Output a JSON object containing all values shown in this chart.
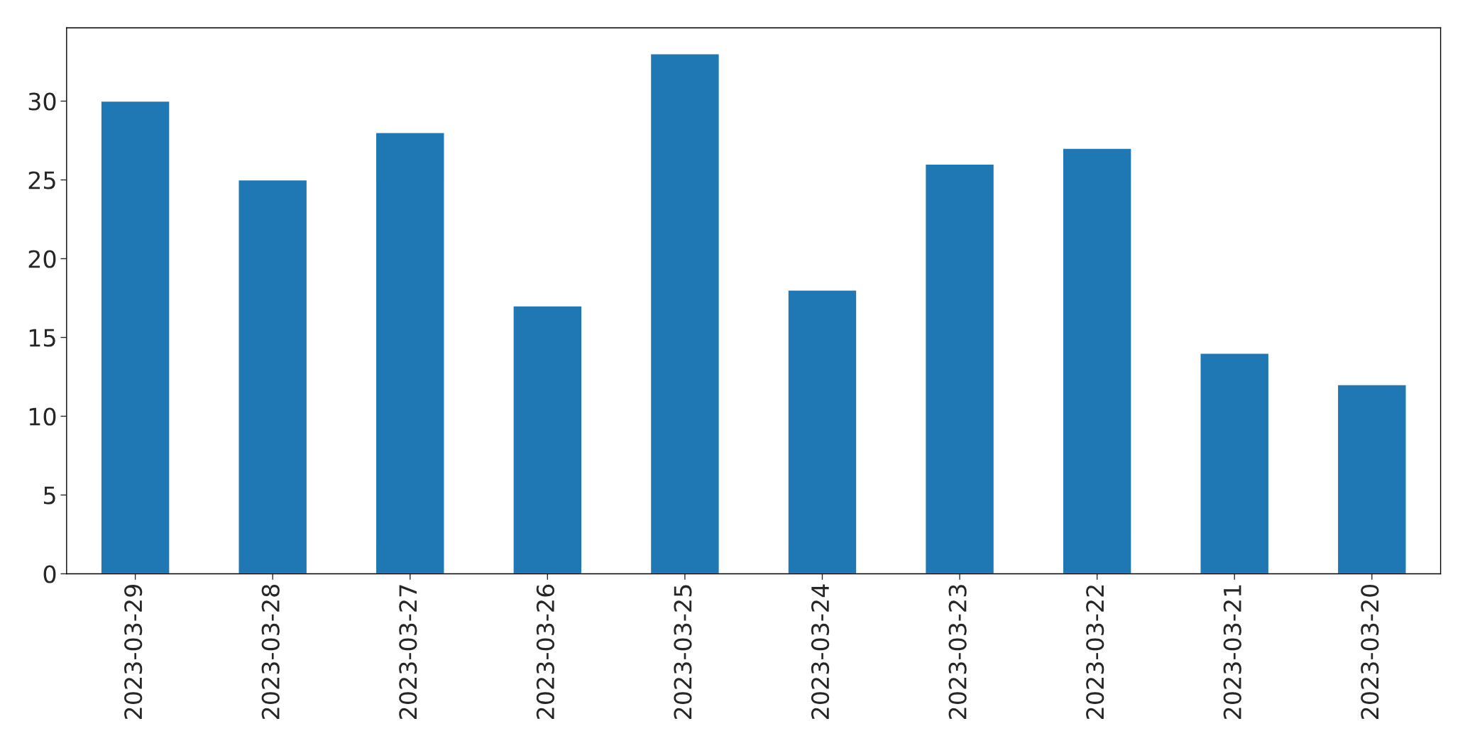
{
  "chart_data": {
    "type": "bar",
    "categories": [
      "2023-03-29",
      "2023-03-28",
      "2023-03-27",
      "2023-03-26",
      "2023-03-25",
      "2023-03-24",
      "2023-03-23",
      "2023-03-22",
      "2023-03-21",
      "2023-03-20"
    ],
    "values": [
      30,
      25,
      28,
      17,
      33,
      18,
      26,
      27,
      14,
      12
    ],
    "color": "#1f77b4",
    "ylim": [
      0,
      34.65
    ],
    "yticks": [
      0,
      5,
      10,
      15,
      20,
      25,
      30
    ],
    "grid": false
  }
}
